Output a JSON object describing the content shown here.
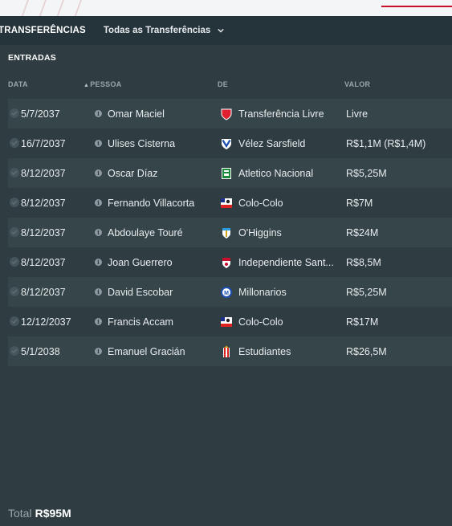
{
  "header": {
    "title": "TRANSFERÊNCIAS",
    "filter_label": "Todas as Transferências"
  },
  "section": {
    "title": "ENTRADAS",
    "columns": {
      "date": "DATA",
      "person": "PESSOA",
      "from": "DE",
      "value": "VALOR"
    }
  },
  "rows": [
    {
      "date": "5/7/2037",
      "person": "Omar Maciel",
      "from": "Transferência Livre",
      "value": "Livre",
      "crest": "free-transfer-icon"
    },
    {
      "date": "16/7/2037",
      "person": "Ulises Cisterna",
      "from": "Vélez Sarsfield",
      "value": "R$1,1M (R$1,4M)",
      "crest": "velez-sarsfield-crest"
    },
    {
      "date": "8/12/2037",
      "person": "Oscar Díaz",
      "from": "Atletico Nacional",
      "value": "R$5,25M",
      "crest": "atletico-nacional-crest"
    },
    {
      "date": "8/12/2037",
      "person": "Fernando Villacorta",
      "from": "Colo-Colo",
      "value": "R$7M",
      "crest": "colo-colo-crest"
    },
    {
      "date": "8/12/2037",
      "person": "Abdoulaye Touré",
      "from": "O'Higgins",
      "value": "R$24M",
      "crest": "ohiggins-crest"
    },
    {
      "date": "8/12/2037",
      "person": "Joan Guerrero",
      "from": "Independiente Sant...",
      "value": "R$8,5M",
      "crest": "independiente-santa-fe-crest"
    },
    {
      "date": "8/12/2037",
      "person": "David Escobar",
      "from": "Millonarios",
      "value": "R$5,25M",
      "crest": "millonarios-crest"
    },
    {
      "date": "12/12/2037",
      "person": "Francis Accam",
      "from": "Colo-Colo",
      "value": "R$17M",
      "crest": "colo-colo-crest"
    },
    {
      "date": "5/1/2038",
      "person": "Emanuel Gracián",
      "from": "Estudiantes",
      "value": "R$26,5M",
      "crest": "estudiantes-crest"
    }
  ],
  "total": {
    "label": "Total",
    "amount": "R$95M"
  },
  "colors": {
    "accent_red": "#c8102e",
    "background": "#2f3d43",
    "row_alt": "#364549"
  }
}
